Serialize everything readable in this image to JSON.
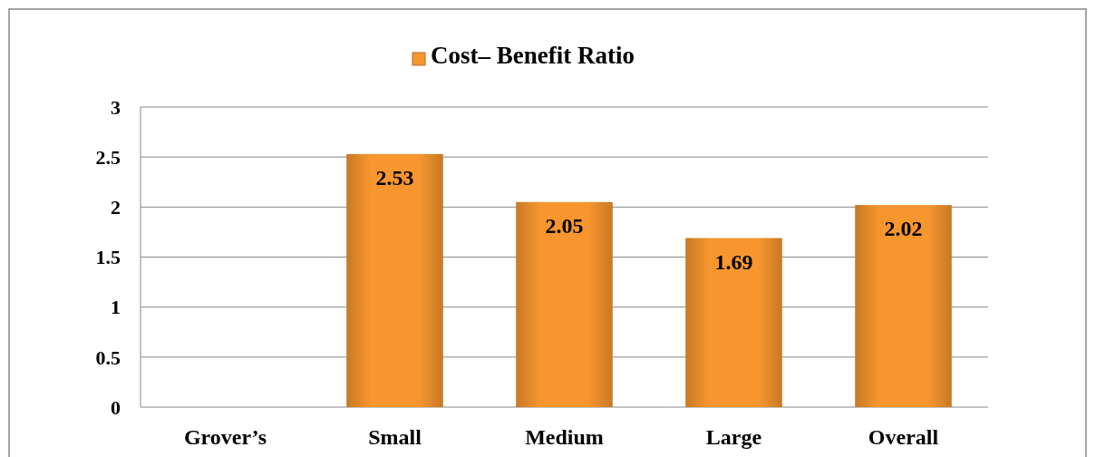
{
  "chart_data": {
    "type": "bar",
    "categories": [
      "Grover’s",
      "Small",
      "Medium",
      "Large",
      "Overall"
    ],
    "series": [
      {
        "name": "Cost– Benefit Ratio",
        "color": "#f7962f",
        "values": [
          null,
          2.53,
          2.05,
          1.69,
          2.02
        ]
      }
    ],
    "ylim": [
      0,
      3
    ],
    "yticks": [
      0,
      0.5,
      1,
      1.5,
      2,
      2.5,
      3
    ],
    "grid": "y",
    "legend": "top",
    "data_labels": true
  }
}
